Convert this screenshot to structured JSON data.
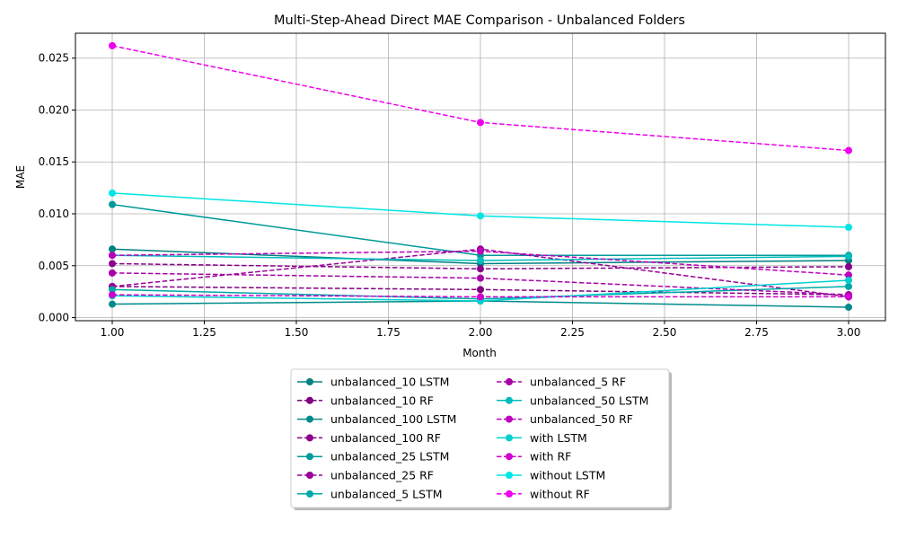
{
  "chart_data": {
    "type": "line",
    "title": "Multi-Step-Ahead Direct MAE Comparison - Unbalanced Folders",
    "xlabel": "Month",
    "ylabel": "MAE",
    "xlim": [
      0.9,
      3.1
    ],
    "ylim": [
      -0.0003,
      0.0274
    ],
    "x_ticks": [
      1.0,
      1.25,
      1.5,
      1.75,
      2.0,
      2.25,
      2.5,
      2.75,
      3.0
    ],
    "x_tick_labels": [
      "1.00",
      "1.25",
      "1.50",
      "1.75",
      "2.00",
      "2.25",
      "2.50",
      "2.75",
      "3.00"
    ],
    "y_ticks": [
      0,
      0.005,
      0.01,
      0.015,
      0.02,
      0.025
    ],
    "y_tick_labels": [
      "0.000",
      "0.005",
      "0.010",
      "0.015",
      "0.020",
      "0.025"
    ],
    "grid": true,
    "legend_placement": "bottom-center",
    "x": [
      1,
      2,
      3
    ],
    "series": [
      {
        "name": "unbalanced_10 LSTM",
        "color": "#008080",
        "dashed": false,
        "values": [
          0.0066,
          0.0052,
          0.0055
        ]
      },
      {
        "name": "unbalanced_10 RF",
        "color": "#800080",
        "dashed": true,
        "values": [
          0.003,
          0.0027,
          0.0022
        ]
      },
      {
        "name": "unbalanced_100 LSTM",
        "color": "#008b8b",
        "dashed": false,
        "values": [
          0.0013,
          0.0016,
          0.001
        ]
      },
      {
        "name": "unbalanced_100 RF",
        "color": "#8b008b",
        "dashed": true,
        "values": [
          0.0052,
          0.0047,
          0.0049
        ]
      },
      {
        "name": "unbalanced_25 LSTM",
        "color": "#009999",
        "dashed": false,
        "values": [
          0.0109,
          0.006,
          0.006
        ]
      },
      {
        "name": "unbalanced_25 RF",
        "color": "#990099",
        "dashed": true,
        "values": [
          0.003,
          0.0066,
          0.002
        ]
      },
      {
        "name": "unbalanced_5 LSTM",
        "color": "#00a8a8",
        "dashed": false,
        "values": [
          0.0027,
          0.0018,
          0.003
        ]
      },
      {
        "name": "unbalanced_5 RF",
        "color": "#a800a8",
        "dashed": true,
        "values": [
          0.0043,
          0.0038,
          0.0022
        ]
      },
      {
        "name": "unbalanced_50 LSTM",
        "color": "#00bcbc",
        "dashed": false,
        "values": [
          0.006,
          0.0055,
          0.0059
        ]
      },
      {
        "name": "unbalanced_50 RF",
        "color": "#bc00bc",
        "dashed": true,
        "values": [
          0.006,
          0.0064,
          0.0041
        ]
      },
      {
        "name": "with LSTM",
        "color": "#00d0d0",
        "dashed": false,
        "values": [
          0.0021,
          0.0016,
          0.0036
        ]
      },
      {
        "name": "with RF",
        "color": "#d000d0",
        "dashed": true,
        "values": [
          0.0022,
          0.002,
          0.002
        ]
      },
      {
        "name": "without LSTM",
        "color": "#00e5e5",
        "dashed": false,
        "values": [
          0.012,
          0.0098,
          0.0087
        ]
      },
      {
        "name": "without RF",
        "color": "#ee00ee",
        "dashed": true,
        "values": [
          0.0262,
          0.0188,
          0.0161
        ]
      }
    ]
  }
}
